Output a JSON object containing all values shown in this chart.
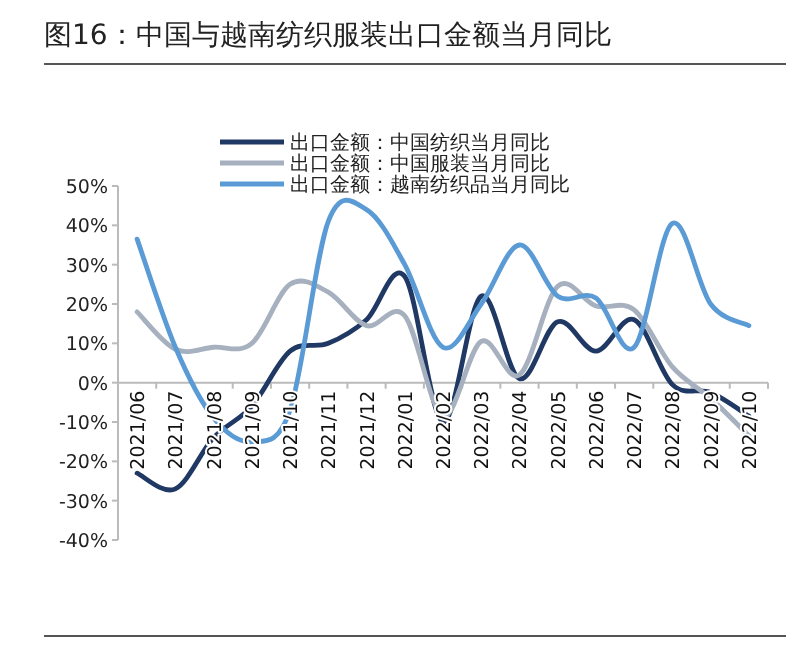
{
  "chart_data": {
    "type": "line",
    "title": "图16：中国与越南纺织服装出口金额当月同比",
    "categories": [
      "2021/06",
      "2021/07",
      "2021/08",
      "2021/09",
      "2021/10",
      "2021/11",
      "2021/12",
      "2022/01",
      "2022/02",
      "2022/03",
      "2022/04",
      "2022/05",
      "2022/06",
      "2022/07",
      "2022/08",
      "2022/09",
      "2022/10"
    ],
    "series": [
      {
        "name": "出口金额：中国纺织当月同比",
        "color": "#1f3864",
        "values": [
          -23,
          -27,
          -14,
          -6,
          8,
          10,
          16,
          27,
          -10,
          22,
          1,
          15.5,
          8,
          16,
          -0.5,
          -2.5,
          -8.5
        ]
      },
      {
        "name": "出口金额：中国服装当月同比",
        "color": "#a6b0bf",
        "values": [
          18,
          8.5,
          9,
          10,
          25,
          23,
          14.5,
          17,
          -8.5,
          10.5,
          2,
          24.5,
          19.5,
          18.5,
          4,
          -4,
          -13.5
        ]
      },
      {
        "name": "出口金额：越南纺织品当月同比",
        "color": "#5b9bd5",
        "values": [
          36.5,
          9,
          -9,
          -15,
          -7,
          41,
          44,
          30,
          9,
          20,
          35,
          22,
          21.5,
          9,
          40.5,
          20,
          14.5
        ]
      }
    ],
    "ylim": [
      -40,
      50
    ],
    "yticks": [
      {
        "value": -40,
        "label": "-40%"
      },
      {
        "value": -30,
        "label": "-30%"
      },
      {
        "value": -20,
        "label": "-20%"
      },
      {
        "value": -10,
        "label": "-10%"
      },
      {
        "value": 0,
        "label": "0%"
      },
      {
        "value": 10,
        "label": "10%"
      },
      {
        "value": 20,
        "label": "20%"
      },
      {
        "value": 30,
        "label": "30%"
      },
      {
        "value": 40,
        "label": "40%"
      },
      {
        "value": 50,
        "label": "50%"
      }
    ],
    "legend": "top",
    "grid": false,
    "marker": "none",
    "line_style": "solid"
  }
}
